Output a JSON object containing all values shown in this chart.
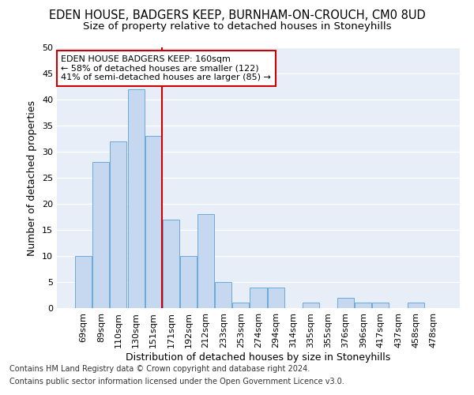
{
  "title": "EDEN HOUSE, BADGERS KEEP, BURNHAM-ON-CROUCH, CM0 8UD",
  "subtitle": "Size of property relative to detached houses in Stoneyhills",
  "xlabel": "Distribution of detached houses by size in Stoneyhills",
  "ylabel": "Number of detached properties",
  "categories": [
    "69sqm",
    "89sqm",
    "110sqm",
    "130sqm",
    "151sqm",
    "171sqm",
    "192sqm",
    "212sqm",
    "233sqm",
    "253sqm",
    "274sqm",
    "294sqm",
    "314sqm",
    "335sqm",
    "355sqm",
    "376sqm",
    "396sqm",
    "417sqm",
    "437sqm",
    "458sqm",
    "478sqm"
  ],
  "values": [
    10,
    28,
    32,
    42,
    33,
    17,
    10,
    18,
    5,
    1,
    4,
    4,
    0,
    1,
    0,
    2,
    1,
    1,
    0,
    1,
    0
  ],
  "bar_color": "#c5d8f0",
  "bar_edge_color": "#6baad8",
  "vline_x": 4.5,
  "vline_color": "#cc0000",
  "annotation_text": "EDEN HOUSE BADGERS KEEP: 160sqm\n← 58% of detached houses are smaller (122)\n41% of semi-detached houses are larger (85) →",
  "annotation_box_color": "#ffffff",
  "annotation_box_edge": "#cc0000",
  "ylim": [
    0,
    50
  ],
  "yticks": [
    0,
    5,
    10,
    15,
    20,
    25,
    30,
    35,
    40,
    45,
    50
  ],
  "footnote1": "Contains HM Land Registry data © Crown copyright and database right 2024.",
  "footnote2": "Contains public sector information licensed under the Open Government Licence v3.0.",
  "bg_color": "#e8eef8",
  "grid_color": "#ffffff",
  "title_fontsize": 10.5,
  "subtitle_fontsize": 9.5,
  "axis_label_fontsize": 9,
  "tick_fontsize": 8,
  "annotation_fontsize": 8,
  "footnote_fontsize": 7
}
